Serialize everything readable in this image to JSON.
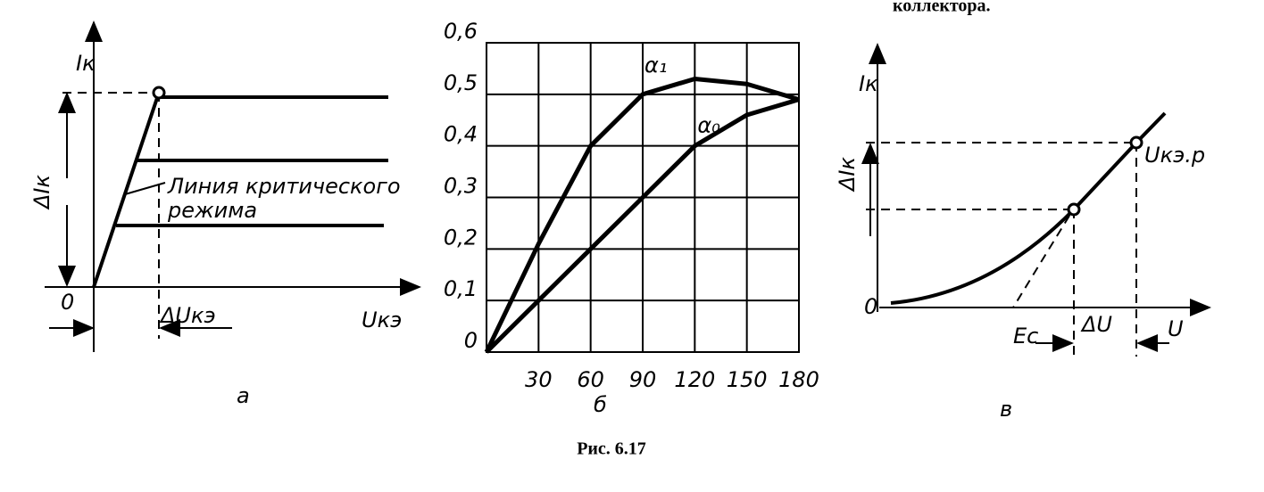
{
  "header": {
    "fragment": "коллектора."
  },
  "panel_a": {
    "y_label": "Iк",
    "delta_y_label": "ΔIк",
    "origin": "0",
    "delta_x_label": "ΔUкэ",
    "x_label": "Uкэ",
    "note_line1": "Линия критического",
    "note_line2": "режима",
    "letter": "а"
  },
  "chart_data": {
    "type": "line",
    "letter": "б",
    "x": [
      0,
      30,
      60,
      90,
      120,
      150,
      180
    ],
    "xlim": [
      0,
      180
    ],
    "xticks": [
      30,
      60,
      90,
      120,
      150,
      180
    ],
    "ylim": [
      0,
      0.6
    ],
    "yticks": [
      0,
      {
        "value": 0.1,
        "label": "0,1"
      },
      {
        "value": 0.2,
        "label": "0,2"
      },
      {
        "value": 0.3,
        "label": "0,3"
      },
      {
        "value": 0.4,
        "label": "0,4"
      },
      {
        "value": 0.5,
        "label": "0,5"
      },
      {
        "value": 0.6,
        "label": "0,6"
      }
    ],
    "grid": true,
    "series": [
      {
        "name": "α₁",
        "color": "#000000",
        "values": [
          0,
          0.21,
          0.4,
          0.5,
          0.53,
          0.52,
          0.49
        ]
      },
      {
        "name": "α₀",
        "color": "#000000",
        "values": [
          0,
          0.1,
          0.2,
          0.3,
          0.4,
          0.46,
          0.49
        ]
      }
    ]
  },
  "panel_v": {
    "y_label": "Iк",
    "delta_y_label": "ΔIк",
    "origin": "0",
    "point_label": "Uкэ.р",
    "ec_label": "Eс",
    "delta_x_label": "ΔU",
    "x_label": "U",
    "letter": "в"
  },
  "caption": "Рис. 6.17"
}
